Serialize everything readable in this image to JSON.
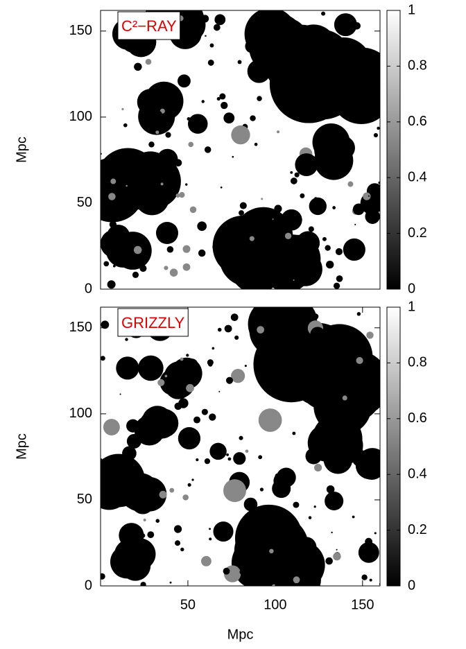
{
  "chart_data": [
    {
      "type": "heatmap",
      "title": "C²−RAY",
      "ylabel": "Mpc",
      "xlim": [
        0,
        160
      ],
      "ylim": [
        0,
        162
      ],
      "yticks": [
        0,
        50,
        100,
        150
      ],
      "zlim": [
        0,
        1
      ],
      "zticks": [
        0,
        0.2,
        0.4,
        0.6,
        0.8,
        1
      ]
    },
    {
      "type": "heatmap",
      "title": "GRIZZLY",
      "ylabel": "Mpc",
      "xlabel": "Mpc",
      "xlim": [
        0,
        160
      ],
      "xticks": [
        50,
        100,
        150
      ],
      "ylim": [
        0,
        162
      ],
      "yticks": [
        0,
        50,
        100,
        150
      ],
      "zlim": [
        0,
        1
      ],
      "zticks": [
        0,
        0.2,
        0.4,
        0.6,
        0.8,
        1
      ]
    }
  ]
}
